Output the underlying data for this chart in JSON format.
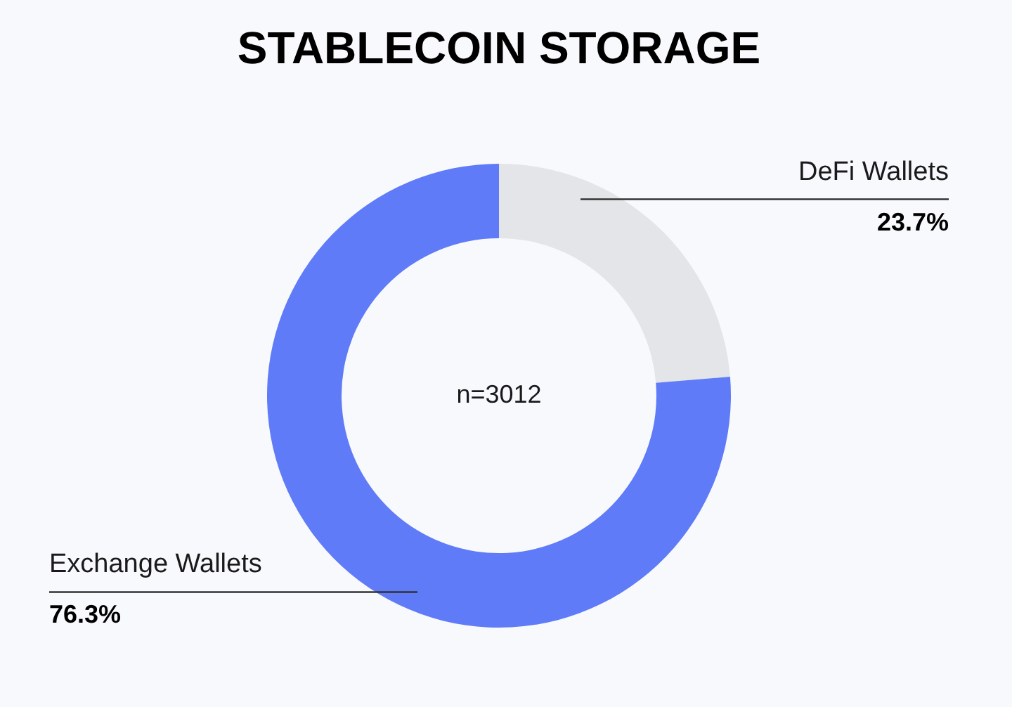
{
  "chart_data": {
    "type": "donut",
    "title": "STABLECOIN STORAGE",
    "categories": [
      "DeFi Wallets",
      "Exchange Wallets"
    ],
    "values": [
      23.7,
      76.3
    ],
    "colors": [
      "#e3e5e8",
      "#5f7bf7"
    ],
    "value_labels": [
      "23.7%",
      "76.3%"
    ],
    "annotations": [
      "n=3012"
    ]
  }
}
